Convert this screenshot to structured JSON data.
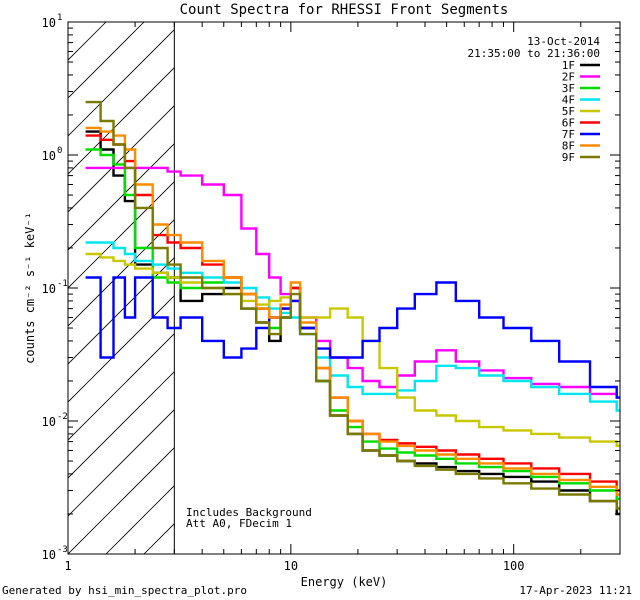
{
  "chart_data": {
    "type": "line",
    "title": "Count Spectra for RHESSI Front Segments",
    "xlabel": "Energy (keV)",
    "ylabel": "counts cm⁻² s⁻¹ keV⁻¹",
    "xscale": "log",
    "yscale": "log",
    "xlim": [
      1,
      300
    ],
    "ylim": [
      0.001,
      10
    ],
    "x_ticks": [
      {
        "value": 1,
        "label": "1"
      },
      {
        "value": 10,
        "label": "10"
      },
      {
        "value": 100,
        "label": "100"
      }
    ],
    "y_ticks": [
      {
        "value": 0.001,
        "base": "10",
        "exp": "-3"
      },
      {
        "value": 0.01,
        "base": "10",
        "exp": "-2"
      },
      {
        "value": 0.1,
        "base": "10",
        "exp": "-1"
      },
      {
        "value": 1,
        "base": "10",
        "exp": "0"
      },
      {
        "value": 10,
        "base": "10",
        "exp": "1"
      }
    ],
    "date": "13-Oct-2014",
    "time_range": "21:35:00 to 21:36:00",
    "annotations": [
      "Includes Background",
      "Att A0, FDecim 1"
    ],
    "excluded_region": [
      1,
      3
    ],
    "series": [
      {
        "name": "1F",
        "color": "#000000",
        "x": [
          1.2,
          1.4,
          1.6,
          1.8,
          2.0,
          2.4,
          2.8,
          3.2,
          4,
          5,
          6,
          7,
          8,
          9,
          10,
          11,
          13,
          15,
          18,
          21,
          25,
          30,
          36,
          45,
          55,
          70,
          90,
          120,
          160,
          220,
          290
        ],
        "y": [
          1.5,
          1.1,
          0.7,
          0.45,
          0.15,
          0.13,
          0.12,
          0.08,
          0.09,
          0.1,
          0.07,
          0.055,
          0.04,
          0.06,
          0.1,
          0.05,
          0.02,
          0.011,
          0.008,
          0.006,
          0.0055,
          0.005,
          0.0048,
          0.0045,
          0.0042,
          0.004,
          0.0038,
          0.0035,
          0.003,
          0.0025,
          0.002
        ]
      },
      {
        "name": "2F",
        "color": "#ff00ff",
        "x": [
          1.2,
          1.4,
          1.6,
          1.8,
          2.0,
          2.4,
          2.8,
          3.2,
          4,
          5,
          6,
          7,
          8,
          9,
          10,
          11,
          13,
          15,
          18,
          21,
          25,
          30,
          36,
          45,
          55,
          70,
          90,
          120,
          160,
          220,
          290
        ],
        "y": [
          0.8,
          0.8,
          0.8,
          0.8,
          0.8,
          0.8,
          0.75,
          0.7,
          0.6,
          0.5,
          0.28,
          0.18,
          0.12,
          0.09,
          0.08,
          0.06,
          0.04,
          0.03,
          0.025,
          0.02,
          0.018,
          0.022,
          0.028,
          0.034,
          0.028,
          0.024,
          0.021,
          0.019,
          0.018,
          0.016,
          0.015
        ]
      },
      {
        "name": "3F",
        "color": "#00dd00",
        "x": [
          1.2,
          1.4,
          1.6,
          1.8,
          2.0,
          2.4,
          2.8,
          3.2,
          4,
          5,
          6,
          7,
          8,
          9,
          10,
          11,
          13,
          15,
          18,
          21,
          25,
          30,
          36,
          45,
          55,
          70,
          90,
          120,
          160,
          220,
          290
        ],
        "y": [
          1.1,
          1.0,
          0.85,
          0.5,
          0.2,
          0.12,
          0.11,
          0.1,
          0.11,
          0.12,
          0.09,
          0.07,
          0.05,
          0.07,
          0.1,
          0.05,
          0.02,
          0.012,
          0.009,
          0.007,
          0.0062,
          0.0058,
          0.0055,
          0.0052,
          0.0048,
          0.0045,
          0.0042,
          0.0038,
          0.0034,
          0.003,
          0.0026
        ]
      },
      {
        "name": "4F",
        "color": "#00e5ee",
        "x": [
          1.2,
          1.4,
          1.6,
          1.8,
          2.0,
          2.4,
          2.8,
          3.2,
          4,
          5,
          6,
          7,
          8,
          9,
          10,
          11,
          13,
          15,
          18,
          21,
          25,
          30,
          36,
          45,
          55,
          70,
          90,
          120,
          160,
          220,
          290
        ],
        "y": [
          0.22,
          0.22,
          0.2,
          0.18,
          0.16,
          0.15,
          0.14,
          0.13,
          0.12,
          0.11,
          0.1,
          0.085,
          0.07,
          0.065,
          0.06,
          0.045,
          0.03,
          0.022,
          0.018,
          0.016,
          0.016,
          0.017,
          0.02,
          0.026,
          0.025,
          0.022,
          0.02,
          0.018,
          0.016,
          0.014,
          0.012
        ]
      },
      {
        "name": "5F",
        "color": "#c8c800",
        "x": [
          1.2,
          1.4,
          1.6,
          1.8,
          2.0,
          2.4,
          2.8,
          3.2,
          4,
          5,
          6,
          7,
          8,
          9,
          10,
          11,
          13,
          15,
          18,
          21,
          25,
          30,
          36,
          45,
          55,
          70,
          90,
          120,
          160,
          220,
          290
        ],
        "y": [
          0.18,
          0.17,
          0.16,
          0.15,
          0.14,
          0.13,
          0.12,
          0.11,
          0.1,
          0.09,
          0.08,
          0.075,
          0.08,
          0.085,
          0.08,
          0.06,
          0.06,
          0.07,
          0.06,
          0.04,
          0.025,
          0.015,
          0.012,
          0.011,
          0.01,
          0.009,
          0.0085,
          0.008,
          0.0075,
          0.007,
          0.0065
        ]
      },
      {
        "name": "6F",
        "color": "#ff0000",
        "x": [
          1.2,
          1.4,
          1.6,
          1.8,
          2.0,
          2.4,
          2.8,
          3.2,
          4,
          5,
          6,
          7,
          8,
          9,
          10,
          11,
          13,
          15,
          18,
          21,
          25,
          30,
          36,
          45,
          55,
          70,
          90,
          120,
          160,
          220,
          290
        ],
        "y": [
          1.4,
          1.3,
          1.2,
          0.9,
          0.5,
          0.25,
          0.22,
          0.2,
          0.15,
          0.12,
          0.09,
          0.07,
          0.06,
          0.07,
          0.1,
          0.05,
          0.025,
          0.015,
          0.01,
          0.008,
          0.0072,
          0.0068,
          0.0064,
          0.006,
          0.0056,
          0.0052,
          0.0048,
          0.0044,
          0.004,
          0.0035,
          0.003
        ]
      },
      {
        "name": "7F",
        "color": "#0000ff",
        "x": [
          1.2,
          1.4,
          1.6,
          1.8,
          2.0,
          2.4,
          2.8,
          3.2,
          4,
          5,
          6,
          7,
          8,
          9,
          10,
          11,
          13,
          15,
          18,
          21,
          25,
          30,
          36,
          45,
          55,
          70,
          90,
          120,
          160,
          220,
          290
        ],
        "y": [
          0.12,
          0.03,
          0.12,
          0.06,
          0.12,
          0.06,
          0.05,
          0.06,
          0.04,
          0.03,
          0.035,
          0.05,
          0.06,
          0.07,
          0.08,
          0.05,
          0.035,
          0.03,
          0.03,
          0.04,
          0.05,
          0.07,
          0.09,
          0.11,
          0.08,
          0.06,
          0.05,
          0.04,
          0.028,
          0.018,
          0.015
        ]
      },
      {
        "name": "8F",
        "color": "#ff8c00",
        "x": [
          1.2,
          1.4,
          1.6,
          1.8,
          2.0,
          2.4,
          2.8,
          3.2,
          4,
          5,
          6,
          7,
          8,
          9,
          10,
          11,
          13,
          15,
          18,
          21,
          25,
          30,
          36,
          45,
          55,
          70,
          90,
          120,
          160,
          220,
          290
        ],
        "y": [
          1.6,
          1.5,
          1.4,
          1.1,
          0.6,
          0.3,
          0.25,
          0.22,
          0.16,
          0.12,
          0.09,
          0.07,
          0.06,
          0.075,
          0.11,
          0.055,
          0.025,
          0.015,
          0.01,
          0.008,
          0.007,
          0.0065,
          0.006,
          0.0056,
          0.0052,
          0.0048,
          0.0044,
          0.004,
          0.0036,
          0.0032,
          0.0028
        ]
      },
      {
        "name": "9F",
        "color": "#7a7a00",
        "x": [
          1.2,
          1.4,
          1.6,
          1.8,
          2.0,
          2.4,
          2.8,
          3.2,
          4,
          5,
          6,
          7,
          8,
          9,
          10,
          11,
          13,
          15,
          18,
          21,
          25,
          30,
          36,
          45,
          55,
          70,
          90,
          120,
          160,
          220,
          290
        ],
        "y": [
          2.5,
          1.8,
          1.2,
          0.8,
          0.4,
          0.2,
          0.15,
          0.12,
          0.1,
          0.09,
          0.07,
          0.055,
          0.045,
          0.06,
          0.09,
          0.045,
          0.02,
          0.011,
          0.008,
          0.006,
          0.0055,
          0.005,
          0.0046,
          0.0043,
          0.004,
          0.0037,
          0.0034,
          0.0031,
          0.0028,
          0.0025,
          0.0022
        ]
      }
    ]
  },
  "footer": {
    "left": "Generated by hsi_min_spectra_plot.pro",
    "right": "17-Apr-2023 11:21"
  }
}
